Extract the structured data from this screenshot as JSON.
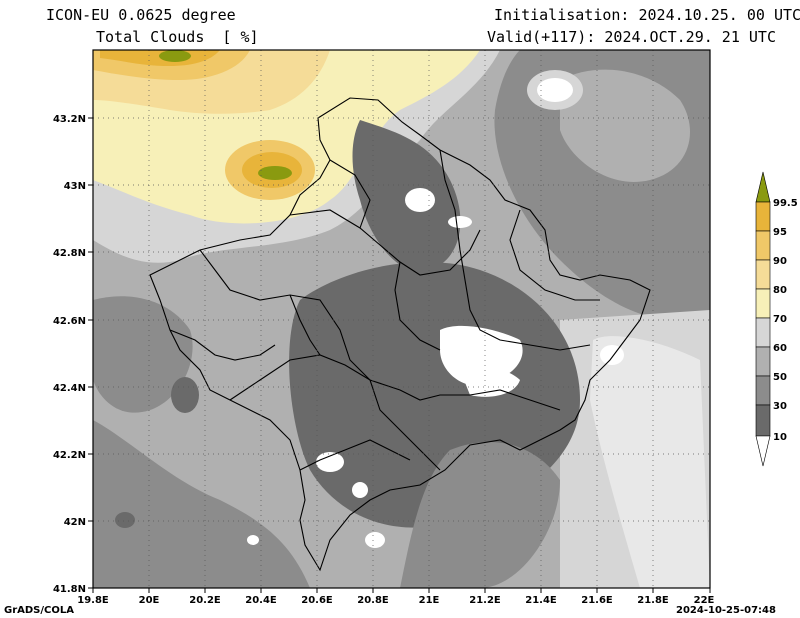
{
  "header": {
    "model": "ICON-EU 0.0625 degree",
    "field": "Total Clouds  [ %]",
    "init": "Initialisation: 2024.10.25. 00 UTC",
    "valid": "Valid(+117): 2024.OCT.29. 21 UTC"
  },
  "axes": {
    "x_ticks": [
      "19.8E",
      "20E",
      "20.2E",
      "20.4E",
      "20.6E",
      "20.8E",
      "21E",
      "21.2E",
      "21.4E",
      "21.6E",
      "21.8E",
      "22E"
    ],
    "y_ticks": [
      "43.2N",
      "43N",
      "42.8N",
      "42.6N",
      "42.4N",
      "42.2N",
      "42N",
      "41.8N"
    ]
  },
  "legend": {
    "labels": [
      "99.5",
      "95",
      "90",
      "80",
      "70",
      "60",
      "50",
      "30",
      "10"
    ],
    "colors": [
      "#8a9a10",
      "#e8b43a",
      "#f0c868",
      "#f5dc98",
      "#f7f0b8",
      "#d6d6d6",
      "#b0b0b0",
      "#8c8c8c",
      "#6a6a6a",
      "#ffffff"
    ]
  },
  "footer": {
    "left": "GrADS/COLA",
    "right": "2024-10-25-07:48"
  }
}
